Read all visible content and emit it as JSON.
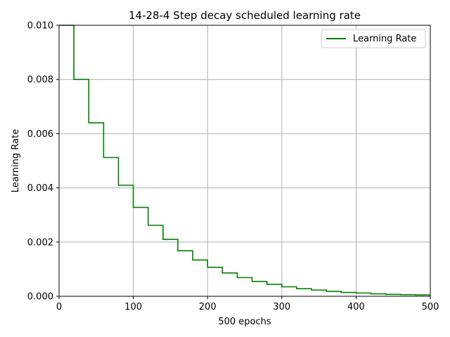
{
  "chart_data": {
    "type": "line",
    "title": "14-28-4 Step decay scheduled learning rate",
    "xlabel": "500 epochs",
    "ylabel": "Learning Rate",
    "xlim": [
      0,
      500
    ],
    "ylim": [
      0,
      0.01
    ],
    "x_ticks": [
      "0",
      "100",
      "200",
      "300",
      "400",
      "500"
    ],
    "y_ticks": [
      "0.000",
      "0.002",
      "0.004",
      "0.006",
      "0.008",
      "0.010"
    ],
    "grid": true,
    "legend_position": "top-right",
    "series": [
      {
        "name": "Learning Rate",
        "color": "#008000",
        "step": "post",
        "x": [
          0,
          20,
          40,
          60,
          80,
          100,
          120,
          140,
          160,
          180,
          200,
          220,
          240,
          260,
          280,
          300,
          320,
          340,
          360,
          380,
          400,
          420,
          440,
          460,
          480,
          500
        ],
        "y": [
          0.01,
          0.008,
          0.0064,
          0.00512,
          0.0041,
          0.00328,
          0.00262,
          0.0021,
          0.00168,
          0.00134,
          0.00107,
          0.00086,
          0.00069,
          0.00055,
          0.00044,
          0.00035,
          0.00028,
          0.00023,
          0.00018,
          0.00014,
          0.00012,
          9e-05,
          7e-05,
          6e-05,
          5e-05,
          5e-05
        ]
      }
    ]
  }
}
